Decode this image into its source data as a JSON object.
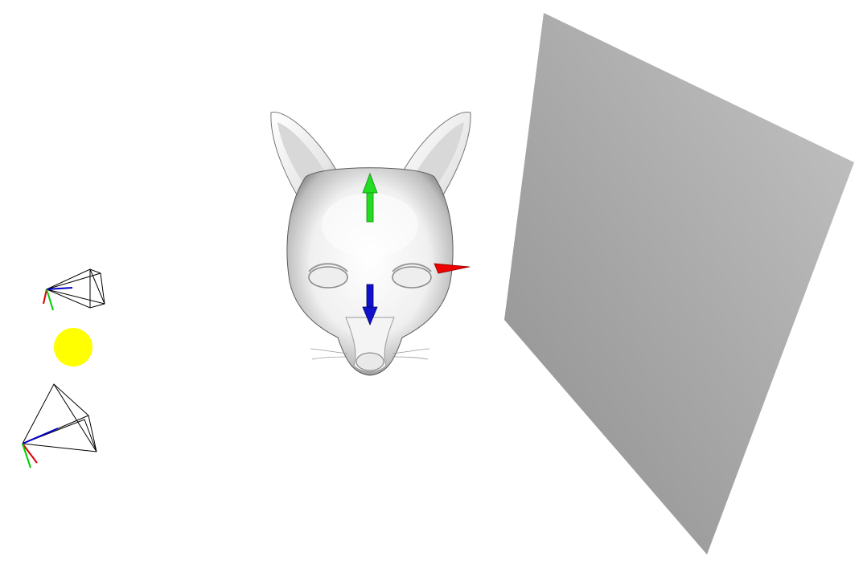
{
  "scene": {
    "background_color": "#ffffff",
    "objects": [
      {
        "name": "cat-head-model",
        "type": "mesh",
        "color": "#f2f2f2"
      },
      {
        "name": "gray-plane",
        "type": "plane",
        "color": "#a8a8a8"
      },
      {
        "name": "light-source",
        "type": "point-light",
        "color": "#ffff00"
      },
      {
        "name": "camera-frustum-upper",
        "type": "camera"
      },
      {
        "name": "camera-frustum-lower",
        "type": "camera"
      }
    ],
    "gizmo": {
      "x_axis_color": "#ff0000",
      "y_axis_color": "#00dd00",
      "z_axis_color": "#0000cc"
    }
  }
}
